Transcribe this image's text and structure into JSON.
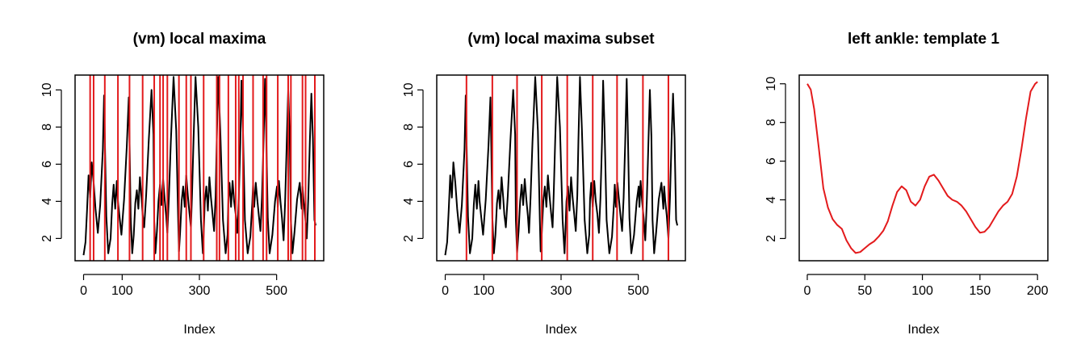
{
  "chart_data": [
    {
      "type": "line",
      "title": "(vm) local maxima",
      "xlabel": "Index",
      "ylabel": "",
      "xlim": [
        -22,
        622
      ],
      "ylim": [
        0.8,
        10.8
      ],
      "xticks": [
        0,
        100,
        300,
        500
      ],
      "yticks": [
        2,
        4,
        6,
        8,
        10
      ],
      "line_color": "#000000",
      "vline_color": "#e31a1c",
      "x": [
        0,
        5,
        9,
        13,
        17,
        21,
        26,
        31,
        37,
        43,
        50,
        53,
        55,
        59,
        64,
        70,
        74,
        78,
        82,
        86,
        89,
        93,
        98,
        105,
        112,
        117,
        119,
        122,
        126,
        130,
        134,
        138,
        142,
        146,
        150,
        153,
        157,
        162,
        169,
        176,
        181,
        183,
        186,
        190,
        194,
        198,
        202,
        206,
        210,
        214,
        217,
        221,
        226,
        233,
        240,
        245,
        247,
        250,
        254,
        258,
        262,
        266,
        270,
        274,
        278,
        281,
        285,
        290,
        297,
        304,
        309,
        311,
        314,
        318,
        322,
        326,
        330,
        334,
        338,
        342,
        345,
        349,
        354,
        361,
        368,
        373,
        375,
        378,
        382,
        386,
        390,
        394,
        398,
        402,
        406,
        409,
        413,
        418,
        425,
        432,
        437,
        439,
        442,
        446,
        450,
        454,
        458,
        462,
        466,
        470,
        473,
        477,
        482,
        489,
        496,
        501,
        503,
        506,
        510,
        514,
        518,
        522,
        526,
        530,
        534,
        537,
        541,
        546,
        553,
        560,
        565,
        567,
        570,
        574,
        578,
        582,
        586,
        590,
        594,
        598,
        601
      ],
      "y": [
        1.1,
        1.8,
        3.5,
        5.4,
        4.2,
        6.1,
        5.0,
        3.6,
        2.3,
        3.8,
        6.8,
        9.7,
        7.5,
        3.2,
        1.2,
        2.0,
        3.8,
        4.9,
        3.6,
        5.1,
        4.0,
        3.2,
        2.2,
        4.1,
        7.0,
        9.6,
        7.4,
        3.1,
        1.2,
        2.2,
        3.9,
        4.6,
        3.6,
        5.3,
        4.2,
        3.3,
        2.6,
        4.3,
        7.3,
        10.0,
        7.6,
        3.0,
        1.2,
        2.4,
        4.0,
        4.9,
        3.8,
        5.2,
        4.1,
        3.2,
        2.3,
        4.2,
        7.2,
        10.7,
        7.8,
        3.0,
        1.3,
        2.3,
        4.0,
        4.8,
        3.7,
        5.4,
        4.3,
        3.4,
        2.6,
        4.4,
        7.4,
        10.7,
        8.0,
        3.0,
        1.2,
        2.3,
        4.0,
        4.8,
        3.5,
        5.3,
        4.2,
        3.3,
        2.4,
        4.3,
        7.3,
        10.7,
        7.9,
        3.0,
        1.2,
        2.2,
        4.1,
        5.0,
        3.7,
        5.1,
        4.0,
        3.3,
        2.3,
        4.2,
        7.2,
        10.5,
        7.7,
        3.0,
        1.2,
        2.1,
        3.9,
        4.9,
        3.7,
        5.0,
        4.1,
        3.2,
        2.4,
        4.2,
        7.1,
        10.6,
        7.8,
        3.1,
        1.2,
        2.2,
        4.0,
        4.8,
        3.7,
        5.1,
        4.0,
        3.1,
        1.9,
        4.0,
        7.0,
        10.0,
        7.5,
        3.0,
        1.2,
        2.3,
        4.1,
        5.0,
        3.6,
        4.8,
        4.0,
        3.2,
        2.0,
        4.2,
        7.2,
        9.8,
        7.4,
        3.0,
        2.7
      ],
      "vlines": [
        17,
        26,
        55,
        89,
        119,
        153,
        183,
        198,
        206,
        217,
        247,
        266,
        278,
        311,
        345,
        352,
        375,
        394,
        402,
        413,
        439,
        465,
        474,
        503,
        530,
        537,
        567,
        575,
        599
      ]
    },
    {
      "type": "line",
      "title": "(vm) local maxima subset",
      "xlabel": "Index",
      "ylabel": "",
      "xlim": [
        -22,
        622
      ],
      "ylim": [
        0.8,
        10.8
      ],
      "xticks": [
        0,
        100,
        300,
        500
      ],
      "yticks": [
        2,
        4,
        6,
        8,
        10
      ],
      "line_color": "#000000",
      "vline_color": "#e31a1c",
      "x": [
        0,
        5,
        9,
        13,
        17,
        21,
        26,
        31,
        37,
        43,
        50,
        53,
        55,
        59,
        64,
        70,
        74,
        78,
        82,
        86,
        89,
        93,
        98,
        105,
        112,
        117,
        119,
        122,
        126,
        130,
        134,
        138,
        142,
        146,
        150,
        153,
        157,
        162,
        169,
        176,
        181,
        183,
        186,
        190,
        194,
        198,
        202,
        206,
        210,
        214,
        217,
        221,
        226,
        233,
        240,
        245,
        247,
        250,
        254,
        258,
        262,
        266,
        270,
        274,
        278,
        281,
        285,
        290,
        297,
        304,
        309,
        311,
        314,
        318,
        322,
        326,
        330,
        334,
        338,
        342,
        345,
        349,
        354,
        361,
        368,
        373,
        375,
        378,
        382,
        386,
        390,
        394,
        398,
        402,
        406,
        409,
        413,
        418,
        425,
        432,
        437,
        439,
        442,
        446,
        450,
        454,
        458,
        462,
        466,
        470,
        473,
        477,
        482,
        489,
        496,
        501,
        503,
        506,
        510,
        514,
        518,
        522,
        526,
        530,
        534,
        537,
        541,
        546,
        553,
        560,
        565,
        567,
        570,
        574,
        578,
        582,
        586,
        590,
        594,
        598,
        601
      ],
      "y": [
        1.1,
        1.8,
        3.5,
        5.4,
        4.2,
        6.1,
        5.0,
        3.6,
        2.3,
        3.8,
        6.8,
        9.7,
        7.5,
        3.2,
        1.2,
        2.0,
        3.8,
        4.9,
        3.6,
        5.1,
        4.0,
        3.2,
        2.2,
        4.1,
        7.0,
        9.6,
        7.4,
        3.1,
        1.2,
        2.2,
        3.9,
        4.6,
        3.6,
        5.3,
        4.2,
        3.3,
        2.6,
        4.3,
        7.3,
        10.0,
        7.6,
        3.0,
        1.2,
        2.4,
        4.0,
        4.9,
        3.8,
        5.2,
        4.1,
        3.2,
        2.3,
        4.2,
        7.2,
        10.7,
        7.8,
        3.0,
        1.3,
        2.3,
        4.0,
        4.8,
        3.7,
        5.4,
        4.3,
        3.4,
        2.6,
        4.4,
        7.4,
        10.7,
        8.0,
        3.0,
        1.2,
        2.3,
        4.0,
        4.8,
        3.5,
        5.3,
        4.2,
        3.3,
        2.4,
        4.3,
        7.3,
        10.7,
        7.9,
        3.0,
        1.2,
        2.2,
        4.1,
        5.0,
        3.7,
        5.1,
        4.0,
        3.3,
        2.3,
        4.2,
        7.2,
        10.5,
        7.7,
        3.0,
        1.2,
        2.1,
        3.9,
        4.9,
        3.7,
        5.0,
        4.1,
        3.2,
        2.4,
        4.2,
        7.1,
        10.6,
        7.8,
        3.1,
        1.2,
        2.2,
        4.0,
        4.8,
        3.7,
        5.1,
        4.0,
        3.1,
        1.9,
        4.0,
        7.0,
        10.0,
        7.5,
        3.0,
        1.2,
        2.3,
        4.1,
        5.0,
        3.6,
        4.8,
        4.0,
        3.2,
        2.0,
        4.2,
        7.2,
        9.8,
        7.4,
        3.0,
        2.7
      ],
      "vlines": [
        55,
        122,
        186,
        250,
        316,
        382,
        445,
        512,
        578
      ]
    },
    {
      "type": "line",
      "title": "left ankle: template 1",
      "xlabel": "Index",
      "ylabel": "",
      "xlim": [
        -7,
        209
      ],
      "ylim": [
        0.85,
        10.45
      ],
      "xticks": [
        0,
        50,
        100,
        150,
        200
      ],
      "yticks": [
        2,
        4,
        6,
        8,
        10
      ],
      "line_color": "#e31a1c",
      "vlines": [],
      "x": [
        0,
        3,
        6,
        10,
        14,
        18,
        22,
        26,
        30,
        34,
        38,
        42,
        46,
        50,
        54,
        58,
        62,
        66,
        70,
        74,
        78,
        82,
        86,
        90,
        94,
        98,
        102,
        106,
        110,
        114,
        118,
        122,
        126,
        130,
        134,
        138,
        142,
        146,
        150,
        154,
        158,
        162,
        166,
        170,
        174,
        178,
        182,
        186,
        190,
        194,
        198,
        200
      ],
      "y": [
        10.0,
        9.7,
        8.7,
        6.7,
        4.6,
        3.6,
        3.0,
        2.7,
        2.5,
        1.9,
        1.5,
        1.25,
        1.3,
        1.5,
        1.7,
        1.85,
        2.1,
        2.4,
        2.9,
        3.7,
        4.4,
        4.7,
        4.5,
        3.9,
        3.7,
        4.0,
        4.7,
        5.2,
        5.3,
        5.0,
        4.6,
        4.2,
        4.0,
        3.9,
        3.7,
        3.4,
        3.0,
        2.6,
        2.3,
        2.35,
        2.6,
        3.0,
        3.4,
        3.7,
        3.9,
        4.3,
        5.2,
        6.6,
        8.2,
        9.6,
        10.0,
        10.1
      ]
    }
  ]
}
